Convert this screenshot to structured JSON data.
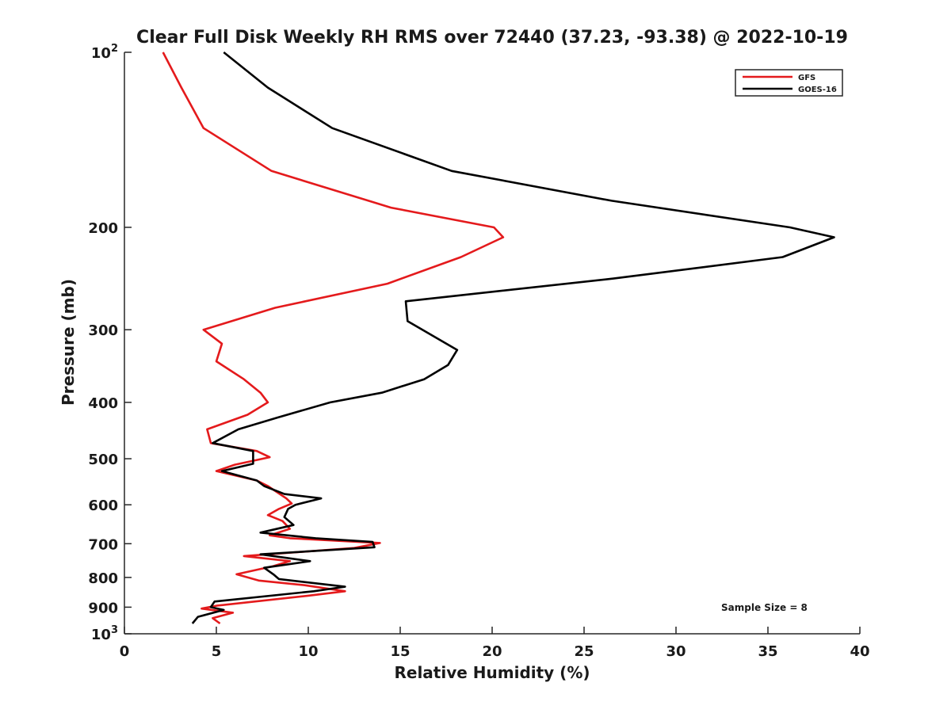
{
  "chart_data": {
    "type": "line",
    "title": "Clear Full Disk Weekly RH RMS over 72440 (37.23, -93.38) @ 2022-10-19",
    "xlabel": "Relative Humidity (%)",
    "ylabel": "Pressure (mb)",
    "xlim": [
      0,
      40
    ],
    "ylim": [
      100,
      1000
    ],
    "yscale": "log",
    "y_reversed": true,
    "x_ticks": [
      "0",
      "5",
      "10",
      "15",
      "20",
      "25",
      "30",
      "35",
      "40"
    ],
    "y_ticks": [
      {
        "value": 100,
        "label": "10",
        "sup": "2"
      },
      {
        "value": 200,
        "label": "200",
        "sup": ""
      },
      {
        "value": 300,
        "label": "300",
        "sup": ""
      },
      {
        "value": 400,
        "label": "400",
        "sup": ""
      },
      {
        "value": 500,
        "label": "500",
        "sup": ""
      },
      {
        "value": 600,
        "label": "600",
        "sup": ""
      },
      {
        "value": 700,
        "label": "700",
        "sup": ""
      },
      {
        "value": 800,
        "label": "800",
        "sup": ""
      },
      {
        "value": 900,
        "label": "900",
        "sup": ""
      },
      {
        "value": 1000,
        "label": "10",
        "sup": "3"
      }
    ],
    "grid": false,
    "legend_position": "top-right",
    "annotation": "Sample Size = 8",
    "series": [
      {
        "name": "GFS",
        "color": "#e41a1c",
        "points": [
          [
            2.1,
            100
          ],
          [
            3.1,
            115
          ],
          [
            4.3,
            135
          ],
          [
            8.0,
            160
          ],
          [
            14.5,
            185
          ],
          [
            20.1,
            200
          ],
          [
            20.6,
            208
          ],
          [
            18.3,
            225
          ],
          [
            14.3,
            250
          ],
          [
            8.2,
            275
          ],
          [
            4.3,
            300
          ],
          [
            5.3,
            317
          ],
          [
            5.0,
            340
          ],
          [
            6.5,
            365
          ],
          [
            7.4,
            385
          ],
          [
            7.8,
            400
          ],
          [
            6.7,
            420
          ],
          [
            4.5,
            445
          ],
          [
            4.7,
            470
          ],
          [
            7.2,
            485
          ],
          [
            7.9,
            497
          ],
          [
            6.0,
            512
          ],
          [
            5.0,
            525
          ],
          [
            7.2,
            545
          ],
          [
            7.8,
            557
          ],
          [
            8.8,
            585
          ],
          [
            9.1,
            597
          ],
          [
            8.4,
            610
          ],
          [
            7.8,
            625
          ],
          [
            8.6,
            640
          ],
          [
            9.0,
            660
          ],
          [
            7.9,
            677
          ],
          [
            9.0,
            685
          ],
          [
            13.9,
            698
          ],
          [
            12.5,
            712
          ],
          [
            6.5,
            735
          ],
          [
            9.0,
            750
          ],
          [
            8.1,
            765
          ],
          [
            6.1,
            790
          ],
          [
            7.3,
            810
          ],
          [
            9.8,
            825
          ],
          [
            12.0,
            845
          ],
          [
            10.0,
            860
          ],
          [
            5.0,
            895
          ],
          [
            4.2,
            905
          ],
          [
            5.9,
            920
          ],
          [
            4.8,
            940
          ],
          [
            5.2,
            960
          ]
        ]
      },
      {
        "name": "GOES-16",
        "color": "#000000",
        "points": [
          [
            5.4,
            100
          ],
          [
            7.8,
            115
          ],
          [
            11.3,
            135
          ],
          [
            17.8,
            160
          ],
          [
            26.5,
            180
          ],
          [
            36.2,
            200
          ],
          [
            38.6,
            208
          ],
          [
            35.8,
            225
          ],
          [
            26.6,
            245
          ],
          [
            15.3,
            268
          ],
          [
            15.4,
            290
          ],
          [
            18.1,
            325
          ],
          [
            17.6,
            345
          ],
          [
            16.3,
            365
          ],
          [
            14.0,
            385
          ],
          [
            11.2,
            400
          ],
          [
            8.3,
            425
          ],
          [
            6.2,
            445
          ],
          [
            4.8,
            470
          ],
          [
            7.0,
            485
          ],
          [
            7.0,
            497
          ],
          [
            7.0,
            510
          ],
          [
            5.3,
            525
          ],
          [
            7.2,
            545
          ],
          [
            7.6,
            557
          ],
          [
            8.7,
            575
          ],
          [
            10.7,
            585
          ],
          [
            9.3,
            600
          ],
          [
            8.9,
            610
          ],
          [
            8.7,
            630
          ],
          [
            9.2,
            650
          ],
          [
            7.4,
            670
          ],
          [
            10.4,
            685
          ],
          [
            13.5,
            695
          ],
          [
            13.6,
            710
          ],
          [
            7.4,
            730
          ],
          [
            10.1,
            750
          ],
          [
            7.6,
            770
          ],
          [
            8.1,
            790
          ],
          [
            8.4,
            805
          ],
          [
            12.0,
            830
          ],
          [
            10.3,
            845
          ],
          [
            4.9,
            880
          ],
          [
            4.7,
            900
          ],
          [
            5.4,
            910
          ],
          [
            4.0,
            935
          ],
          [
            3.7,
            960
          ]
        ]
      }
    ]
  }
}
